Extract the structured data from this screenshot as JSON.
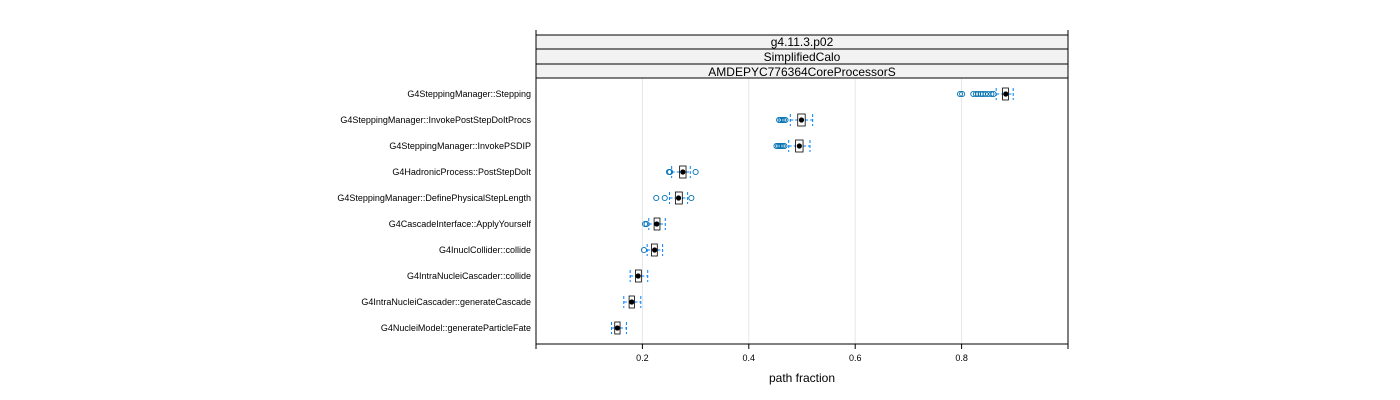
{
  "chart_data": {
    "type": "boxplot",
    "strips": [
      "g4.11.3.p02",
      "SimplifiedCalo",
      "AMDEPYC776364CoreProcessorS"
    ],
    "xlabel": "path fraction",
    "xlim": [
      0.0,
      1.0
    ],
    "x_ticks": [
      0.2,
      0.4,
      0.6,
      0.8
    ],
    "x_tick_labels": [
      "0.2",
      "0.4",
      "0.6",
      "0.8"
    ],
    "grid": "vertical",
    "colors": {
      "box": "#000000",
      "whisker": "#0080ff",
      "outlier": "#0072b2",
      "median": "#000000",
      "grid": "#e6e6e6",
      "strip_bg": "#f2f2f2"
    },
    "categories": [
      "G4SteppingManager::Stepping",
      "G4SteppingManager::InvokePostStepDoItProcs",
      "G4SteppingManager::InvokePSDIP",
      "G4HadronicProcess::PostStepDoIt",
      "G4SteppingManager::DefinePhysicalStepLength",
      "G4CascadeInterface::ApplyYourself",
      "G4InuclCollider::collide",
      "G4IntraNucleiCascader::collide",
      "G4IntraNucleiCascader::generateCascade",
      "G4NucleiModel::generateParticleFate"
    ],
    "boxes": [
      {
        "whisker_low": 0.865,
        "q1": 0.877,
        "median": 0.883,
        "q3": 0.888,
        "whisker_high": 0.897,
        "outliers": [
          0.797,
          0.801,
          0.822,
          0.827,
          0.831,
          0.836,
          0.84,
          0.845,
          0.85,
          0.856,
          0.86
        ]
      },
      {
        "whisker_low": 0.478,
        "q1": 0.492,
        "median": 0.499,
        "q3": 0.506,
        "whisker_high": 0.52,
        "outliers": [
          0.457,
          0.46,
          0.463,
          0.466,
          0.469
        ]
      },
      {
        "whisker_low": 0.475,
        "q1": 0.488,
        "median": 0.495,
        "q3": 0.502,
        "whisker_high": 0.515,
        "outliers": [
          0.452,
          0.455,
          0.458,
          0.461,
          0.464,
          0.467
        ]
      },
      {
        "whisker_low": 0.255,
        "q1": 0.27,
        "median": 0.276,
        "q3": 0.282,
        "whisker_high": 0.29,
        "outliers": [
          0.25,
          0.252,
          0.3
        ]
      },
      {
        "whisker_low": 0.251,
        "q1": 0.262,
        "median": 0.268,
        "q3": 0.275,
        "whisker_high": 0.285,
        "outliers": [
          0.226,
          0.242,
          0.292
        ]
      },
      {
        "whisker_low": 0.212,
        "q1": 0.222,
        "median": 0.227,
        "q3": 0.233,
        "whisker_high": 0.243,
        "outliers": [
          0.205,
          0.208
        ]
      },
      {
        "whisker_low": 0.209,
        "q1": 0.217,
        "median": 0.223,
        "q3": 0.228,
        "whisker_high": 0.238,
        "outliers": [
          0.203
        ]
      },
      {
        "whisker_low": 0.177,
        "q1": 0.187,
        "median": 0.192,
        "q3": 0.198,
        "whisker_high": 0.21,
        "outliers": []
      },
      {
        "whisker_low": 0.165,
        "q1": 0.175,
        "median": 0.18,
        "q3": 0.185,
        "whisker_high": 0.197,
        "outliers": []
      },
      {
        "whisker_low": 0.142,
        "q1": 0.148,
        "median": 0.153,
        "q3": 0.158,
        "whisker_high": 0.17,
        "outliers": []
      }
    ]
  }
}
